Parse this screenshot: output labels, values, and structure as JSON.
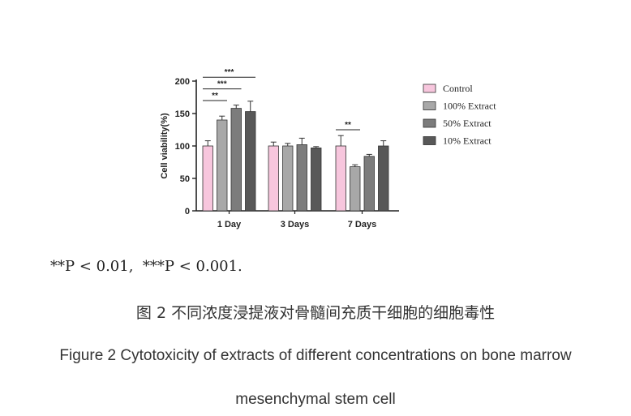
{
  "chart_data": {
    "type": "bar",
    "ylabel": "Cell viability(%)",
    "ylim": [
      0,
      200
    ],
    "yticks": [
      0,
      50,
      100,
      150,
      200
    ],
    "categories": [
      "1 Day",
      "3 Days",
      "7 Days"
    ],
    "series": [
      {
        "name": "Control",
        "color": "#f7c6dd",
        "values": [
          100,
          100,
          100
        ],
        "errors": [
          8,
          6,
          16
        ]
      },
      {
        "name": "100% Extract",
        "color": "#a8a8a8",
        "values": [
          140,
          100,
          68
        ],
        "errors": [
          6,
          4,
          3
        ]
      },
      {
        "name": "50% Extract",
        "color": "#7c7c7c",
        "values": [
          158,
          102,
          84
        ],
        "errors": [
          5,
          10,
          3
        ]
      },
      {
        "name": "10% Extract",
        "color": "#585858",
        "values": [
          153,
          97,
          100
        ],
        "errors": [
          16,
          2,
          8
        ]
      }
    ],
    "legend_position": "right",
    "significance": [
      {
        "group": 0,
        "from": 0,
        "to": 1,
        "label": "**",
        "y": 170
      },
      {
        "group": 0,
        "from": 0,
        "to": 2,
        "label": "***",
        "y": 188
      },
      {
        "group": 0,
        "from": 0,
        "to": 3,
        "label": "***",
        "y": 206
      },
      {
        "group": 2,
        "from": 0,
        "to": 1,
        "label": "**",
        "y": 125
      }
    ]
  },
  "p_note": "**P < 0.01,  ***P < 0.001.",
  "caption_cn": "图 2 不同浓度浸提液对骨髓间充质干细胞的细胞毒性",
  "caption_en_line1": "Figure 2 Cytotoxicity of extracts of different concentrations on bone marrow",
  "caption_en_line2": "mesenchymal stem cell"
}
